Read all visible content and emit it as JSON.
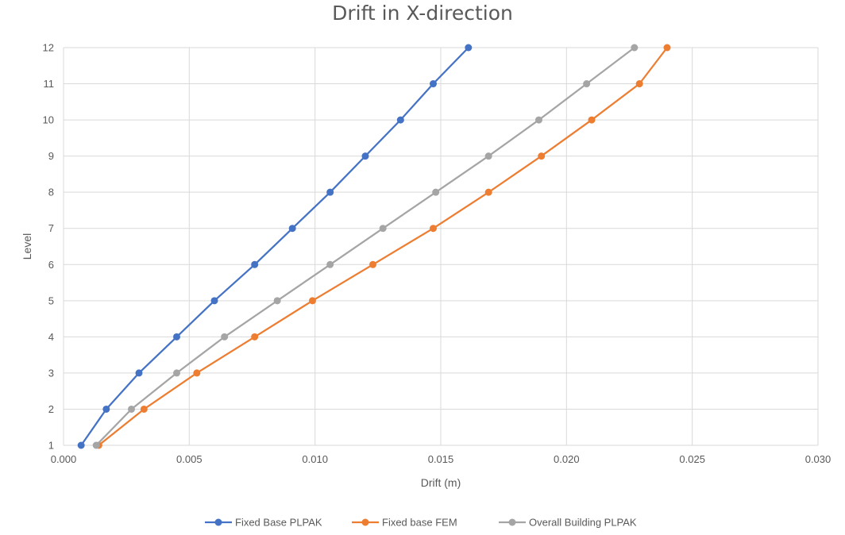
{
  "chart_data": {
    "type": "line",
    "title": "Drift in X-direction",
    "xlabel": "Drift (m)",
    "ylabel": "Level",
    "xlim": [
      0,
      0.03
    ],
    "ylim": [
      1,
      12
    ],
    "x_ticks": [
      "0.000",
      "0.005",
      "0.010",
      "0.015",
      "0.020",
      "0.025",
      "0.030"
    ],
    "y_ticks": [
      "1",
      "2",
      "3",
      "4",
      "5",
      "6",
      "7",
      "8",
      "9",
      "10",
      "11",
      "12"
    ],
    "grid": true,
    "legend_position": "bottom",
    "series": [
      {
        "name": "Fixed Base PLPAK",
        "color": "#4472C4",
        "points": [
          [
            0.0007,
            1
          ],
          [
            0.0017,
            2
          ],
          [
            0.003,
            3
          ],
          [
            0.0045,
            4
          ],
          [
            0.006,
            5
          ],
          [
            0.0076,
            6
          ],
          [
            0.0091,
            7
          ],
          [
            0.0106,
            8
          ],
          [
            0.012,
            9
          ],
          [
            0.0134,
            10
          ],
          [
            0.0147,
            11
          ],
          [
            0.0161,
            12
          ]
        ]
      },
      {
        "name": "Fixed base FEM",
        "color": "#ED7D31",
        "points": [
          [
            0.0014,
            1
          ],
          [
            0.0032,
            2
          ],
          [
            0.0053,
            3
          ],
          [
            0.0076,
            4
          ],
          [
            0.0099,
            5
          ],
          [
            0.0123,
            6
          ],
          [
            0.0147,
            7
          ],
          [
            0.0169,
            8
          ],
          [
            0.019,
            9
          ],
          [
            0.021,
            10
          ],
          [
            0.0229,
            11
          ],
          [
            0.024,
            12
          ]
        ]
      },
      {
        "name": "Overall Building PLPAK",
        "color": "#A5A5A5",
        "points": [
          [
            0.0013,
            1
          ],
          [
            0.0027,
            2
          ],
          [
            0.0045,
            3
          ],
          [
            0.0064,
            4
          ],
          [
            0.0085,
            5
          ],
          [
            0.0106,
            6
          ],
          [
            0.0127,
            7
          ],
          [
            0.0148,
            8
          ],
          [
            0.0169,
            9
          ],
          [
            0.0189,
            10
          ],
          [
            0.0208,
            11
          ],
          [
            0.0227,
            12
          ]
        ]
      }
    ]
  }
}
